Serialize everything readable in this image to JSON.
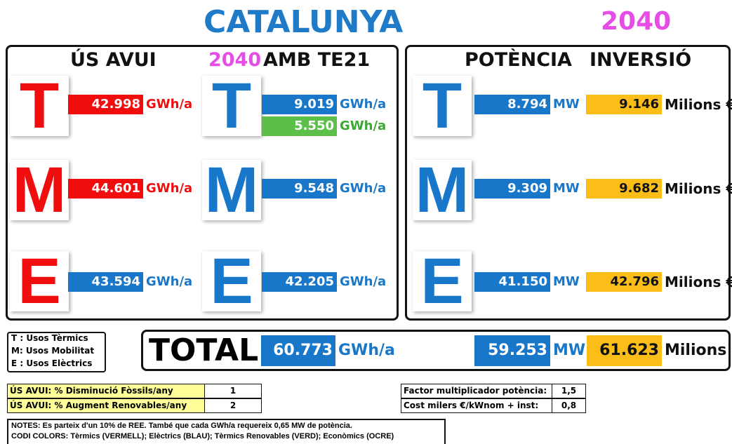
{
  "title": "CATALUNYA",
  "year": "2040",
  "left_panel": {
    "header_now": "ÚS AVUI",
    "header_year": "2040",
    "header_te21": "AMB TE21"
  },
  "right_panel": {
    "header_power": "POTÈNCIA",
    "header_invest": "INVERSIÓ"
  },
  "rows": [
    {
      "letter": "T",
      "now": {
        "value": "42.998",
        "unit": "GWh/a"
      },
      "te21": [
        {
          "value": "9.019",
          "unit": "GWh/a"
        },
        {
          "value": "5.550",
          "unit": "GWh/a"
        }
      ],
      "power": {
        "value": "8.794",
        "unit": "MW"
      },
      "invest": {
        "value": "9.146",
        "unit": "Milions €"
      }
    },
    {
      "letter": "M",
      "now": {
        "value": "44.601",
        "unit": "GWh/a"
      },
      "te21": [
        {
          "value": "9.548",
          "unit": "GWh/a"
        }
      ],
      "power": {
        "value": "9.309",
        "unit": "MW"
      },
      "invest": {
        "value": "9.682",
        "unit": "Milions €"
      }
    },
    {
      "letter": "E",
      "now": {
        "value": "43.594",
        "unit": "GWh/a"
      },
      "te21": [
        {
          "value": "42.205",
          "unit": "GWh/a"
        }
      ],
      "power": {
        "value": "41.150",
        "unit": "MW"
      },
      "invest": {
        "value": "42.796",
        "unit": "Milions €"
      }
    }
  ],
  "legend": [
    "T : Usos Tèrmics",
    "M: Usos Mobilitat",
    "E : Usos Elèctrics"
  ],
  "total": {
    "label": "TOTAL",
    "energy": {
      "value": "60.773",
      "unit": "GWh/a"
    },
    "power": {
      "value": "59.253",
      "unit": "MW"
    },
    "invest": {
      "value": "61.623",
      "unit": "Milions €"
    }
  },
  "params_left": [
    [
      "ÚS AVUI:  % Disminució Fòssils/any",
      "1"
    ],
    [
      "ÚS AVUI:  % Augment Renovables/any",
      "2"
    ]
  ],
  "params_right": [
    [
      "Factor multiplicador potència:",
      "1,5"
    ],
    [
      "Cost milers €/kWnom + inst:",
      "0,8"
    ]
  ],
  "notes": [
    "NOTES: Es parteix d'un 10% de REE. També que cada GWh/a requereix 0,65 MW de potència.",
    "CODI COLORS: Tèrmics (VERMELL); Elèctrics (BLAU); Tèrmics Renovables (VERD); Econòmics (OCRE)"
  ]
}
